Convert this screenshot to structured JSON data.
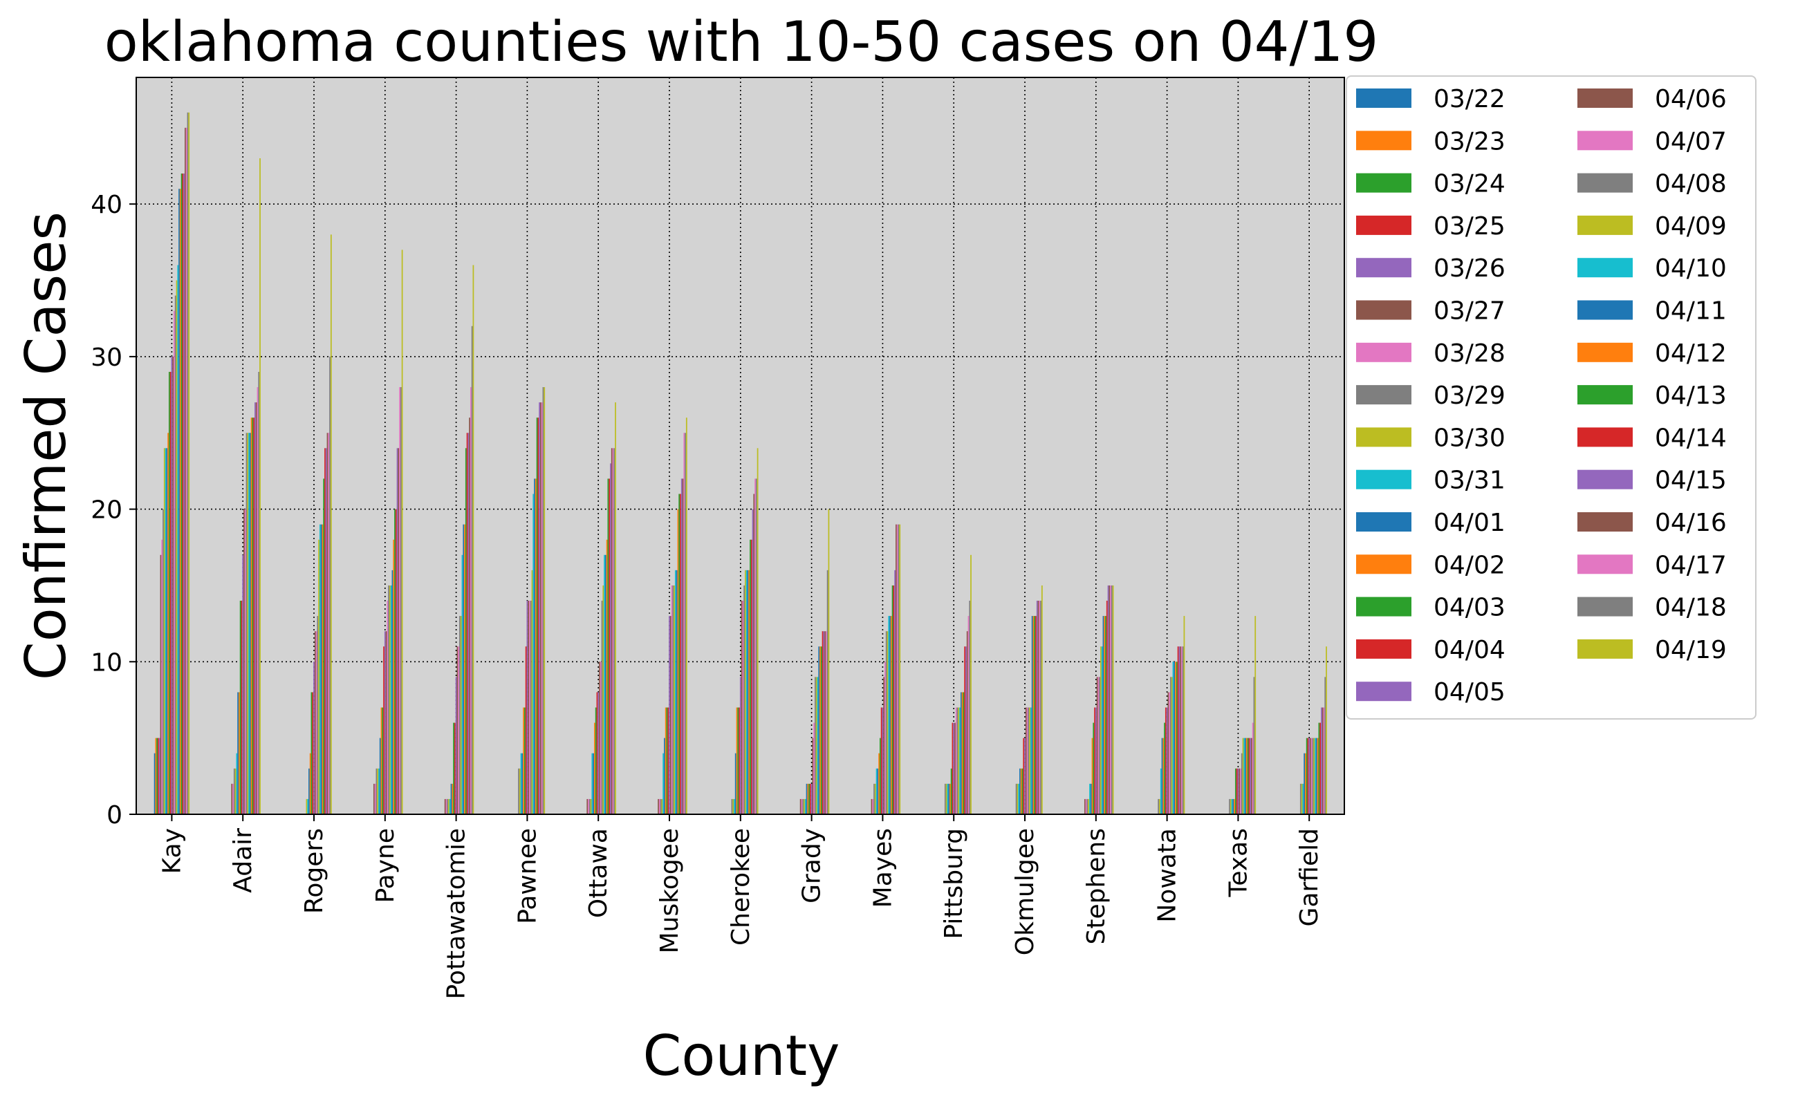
{
  "chart_data": {
    "type": "bar",
    "title": "oklahoma counties with 10-50 cases on 04/19",
    "xlabel": "County",
    "ylabel": "Confirmed Cases",
    "ylim": [
      0,
      48.3
    ],
    "yticks": [
      0,
      10,
      20,
      30,
      40
    ],
    "grid": true,
    "legend_position": "outside-right",
    "background_color": "#d3d3d3",
    "categories": [
      "Kay",
      "Adair",
      "Rogers",
      "Payne",
      "Pottawatomie",
      "Pawnee",
      "Ottawa",
      "Muskogee",
      "Cherokee",
      "Grady",
      "Mayes",
      "Pittsburg",
      "Okmulgee",
      "Stephens",
      "Nowata",
      "Texas",
      "Garfield"
    ],
    "series": [
      {
        "name": "03/22",
        "color": "#1f77b4",
        "values": [
          4,
          0,
          0,
          0,
          0,
          0,
          0,
          0,
          0,
          0,
          0,
          0,
          0,
          0,
          0,
          0,
          0
        ]
      },
      {
        "name": "03/23",
        "color": "#ff7f0e",
        "values": [
          5,
          0,
          0,
          0,
          0,
          0,
          0,
          0,
          0,
          0,
          0,
          0,
          0,
          0,
          0,
          0,
          0
        ]
      },
      {
        "name": "03/24",
        "color": "#2ca02c",
        "values": [
          5,
          0,
          0,
          0,
          0,
          0,
          0,
          0,
          0,
          0,
          0,
          0,
          0,
          0,
          0,
          0,
          0
        ]
      },
      {
        "name": "03/25",
        "color": "#d62728",
        "values": [
          5,
          0,
          0,
          0,
          0,
          0,
          0,
          0,
          0,
          0,
          0,
          0,
          0,
          0,
          0,
          0,
          0
        ]
      },
      {
        "name": "03/26",
        "color": "#9467bd",
        "values": [
          5,
          0,
          0,
          0,
          0,
          0,
          0,
          0,
          0,
          0,
          0,
          0,
          0,
          0,
          0,
          0,
          0
        ]
      },
      {
        "name": "03/27",
        "color": "#8c564b",
        "values": [
          17,
          2,
          0,
          2,
          1,
          0,
          1,
          1,
          0,
          1,
          1,
          0,
          0,
          1,
          0,
          0,
          0
        ]
      },
      {
        "name": "03/28",
        "color": "#e377c2",
        "values": [
          18,
          2,
          0,
          2,
          1,
          0,
          1,
          1,
          0,
          1,
          1,
          0,
          0,
          1,
          0,
          0,
          0
        ]
      },
      {
        "name": "03/29",
        "color": "#7f7f7f",
        "values": [
          20,
          3,
          0,
          3,
          1,
          3,
          1,
          1,
          1,
          1,
          2,
          2,
          2,
          1,
          1,
          1,
          2
        ]
      },
      {
        "name": "03/30",
        "color": "#bcbd22",
        "values": [
          24,
          3,
          1,
          3,
          1,
          3,
          1,
          1,
          1,
          1,
          2,
          2,
          2,
          1,
          1,
          1,
          2
        ]
      },
      {
        "name": "03/31",
        "color": "#17becf",
        "values": [
          24,
          4,
          1,
          3,
          1,
          4,
          4,
          4,
          1,
          1,
          3,
          2,
          2,
          2,
          3,
          1,
          2
        ]
      },
      {
        "name": "04/01",
        "color": "#1f77b4",
        "values": [
          24,
          8,
          3,
          5,
          2,
          4,
          4,
          5,
          4,
          2,
          3,
          2,
          3,
          2,
          5,
          1,
          4
        ]
      },
      {
        "name": "04/02",
        "color": "#ff7f0e",
        "values": [
          25,
          8,
          4,
          7,
          2,
          7,
          6,
          7,
          7,
          2,
          4,
          2,
          3,
          5,
          5,
          1,
          4
        ]
      },
      {
        "name": "04/03",
        "color": "#2ca02c",
        "values": [
          29,
          14,
          8,
          7,
          6,
          7,
          7,
          7,
          7,
          2,
          5,
          3,
          3,
          6,
          6,
          3,
          5
        ]
      },
      {
        "name": "04/04",
        "color": "#d62728",
        "values": [
          29,
          14,
          8,
          11,
          6,
          11,
          8,
          7,
          7,
          2,
          7,
          6,
          5,
          7,
          7,
          3,
          5
        ]
      },
      {
        "name": "04/05",
        "color": "#9467bd",
        "values": [
          30,
          17,
          10,
          12,
          9,
          14,
          8,
          13,
          9,
          2,
          7,
          6,
          5,
          7,
          7,
          3,
          5
        ]
      },
      {
        "name": "04/06",
        "color": "#8c564b",
        "values": [
          30,
          20,
          12,
          12,
          11,
          14,
          10,
          13,
          14,
          5,
          9,
          6,
          7,
          9,
          8,
          3,
          5
        ]
      },
      {
        "name": "04/07",
        "color": "#e377c2",
        "values": [
          33,
          20,
          12,
          14,
          11,
          14,
          10,
          15,
          14,
          6,
          10,
          7,
          7,
          9,
          8,
          3,
          5
        ]
      },
      {
        "name": "04/08",
        "color": "#7f7f7f",
        "values": [
          34,
          25,
          13,
          15,
          13,
          14,
          14,
          15,
          15,
          9,
          12,
          7,
          7,
          9,
          9,
          4,
          5
        ]
      },
      {
        "name": "04/09",
        "color": "#bcbd22",
        "values": [
          35,
          25,
          18,
          15,
          13,
          16,
          15,
          15,
          16,
          9,
          12,
          7,
          7,
          11,
          9,
          5,
          5
        ]
      },
      {
        "name": "04/10",
        "color": "#17becf",
        "values": [
          36,
          25,
          19,
          15,
          17,
          21,
          17,
          16,
          16,
          9,
          13,
          7,
          7,
          11,
          10,
          5,
          5
        ]
      },
      {
        "name": "04/11",
        "color": "#1f77b4",
        "values": [
          41,
          25,
          19,
          16,
          19,
          22,
          17,
          16,
          16,
          11,
          13,
          8,
          13,
          13,
          10,
          5,
          5
        ]
      },
      {
        "name": "04/12",
        "color": "#ff7f0e",
        "values": [
          41,
          26,
          19,
          18,
          19,
          22,
          18,
          20,
          16,
          11,
          13,
          8,
          13,
          13,
          10,
          5,
          5
        ]
      },
      {
        "name": "04/13",
        "color": "#2ca02c",
        "values": [
          42,
          26,
          22,
          20,
          24,
          26,
          22,
          21,
          18,
          11,
          15,
          8,
          13,
          13,
          10,
          5,
          6
        ]
      },
      {
        "name": "04/14",
        "color": "#d62728",
        "values": [
          42,
          26,
          24,
          20,
          25,
          26,
          22,
          21,
          18,
          12,
          15,
          11,
          13,
          14,
          11,
          5,
          6
        ]
      },
      {
        "name": "04/15",
        "color": "#9467bd",
        "values": [
          42,
          27,
          24,
          24,
          25,
          27,
          23,
          22,
          20,
          12,
          16,
          11,
          14,
          15,
          11,
          5,
          7
        ]
      },
      {
        "name": "04/16",
        "color": "#8c564b",
        "values": [
          45,
          27,
          25,
          24,
          26,
          27,
          24,
          22,
          21,
          12,
          19,
          12,
          14,
          15,
          11,
          5,
          7
        ]
      },
      {
        "name": "04/17",
        "color": "#e377c2",
        "values": [
          45,
          28,
          25,
          28,
          28,
          27,
          24,
          25,
          22,
          12,
          19,
          13,
          14,
          15,
          11,
          6,
          7
        ]
      },
      {
        "name": "04/18",
        "color": "#7f7f7f",
        "values": [
          46,
          29,
          30,
          28,
          32,
          28,
          24,
          25,
          22,
          16,
          19,
          14,
          14,
          15,
          11,
          9,
          9
        ]
      },
      {
        "name": "04/19",
        "color": "#bcbd22",
        "values": [
          46,
          43,
          38,
          37,
          36,
          28,
          27,
          26,
          24,
          20,
          19,
          17,
          15,
          15,
          13,
          13,
          11
        ]
      }
    ]
  }
}
